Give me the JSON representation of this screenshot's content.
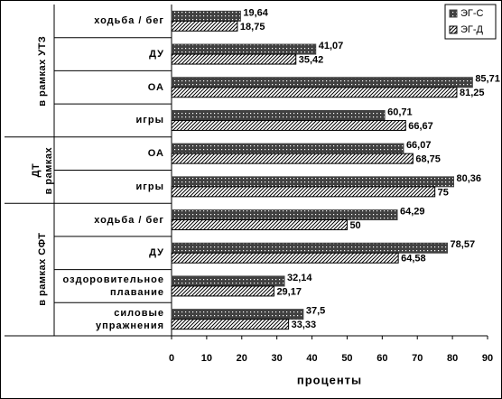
{
  "chart_data": {
    "type": "bar",
    "orientation": "horizontal",
    "groups": [
      {
        "label": "в рамках УТЗ",
        "categories": [
          "ходьба / бег",
          "ДУ",
          "ОА",
          "игры"
        ]
      },
      {
        "label": "в рамках ДТ",
        "categories": [
          "ОА",
          "игры"
        ]
      },
      {
        "label": "в рамках СФТ",
        "categories": [
          "ходьба / бег",
          "ДУ",
          "оздоровительное плавание",
          "силовые упражнения"
        ]
      }
    ],
    "series": [
      {
        "name": "ЭГ-С",
        "color": "#404040",
        "pattern": "dots",
        "values": [
          19.64,
          41.07,
          85.71,
          60.71,
          66.07,
          80.36,
          64.29,
          78.57,
          32.14,
          37.5
        ],
        "value_labels": [
          "19,64",
          "41,07",
          "85,71",
          "60,71",
          "66,07",
          "80,36",
          "64,29",
          "78,57",
          "32,14",
          "37,5"
        ]
      },
      {
        "name": "ЭГ-Д",
        "color": "#000000",
        "pattern": "hatch",
        "values": [
          18.75,
          35.42,
          81.25,
          66.67,
          68.75,
          75,
          50,
          64.58,
          29.17,
          33.33
        ],
        "value_labels": [
          "18,75",
          "35,42",
          "81,25",
          "66,67",
          "68,75",
          "75",
          "50",
          "64,58",
          "29,17",
          "33,33"
        ]
      }
    ],
    "xlim": [
      0,
      90
    ],
    "xticks": [
      0,
      10,
      20,
      30,
      40,
      50,
      60,
      70,
      80,
      90
    ],
    "xlabel": "проценты",
    "legend": "top-right"
  }
}
